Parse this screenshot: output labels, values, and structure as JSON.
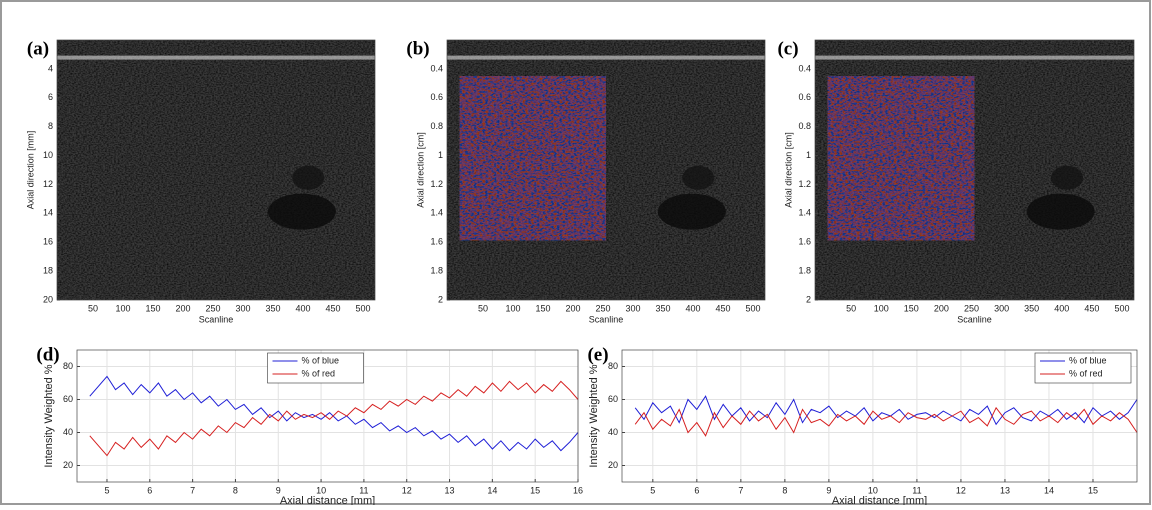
{
  "chart_data": [
    {
      "type": "image",
      "panel_label": "(a)",
      "ylabel": "Axial direction [mm]",
      "xlabel": "Scanline",
      "xlim": [
        -10,
        520
      ],
      "xticks": [
        50,
        100,
        150,
        200,
        250,
        300,
        350,
        400,
        450,
        500
      ],
      "ylim": [
        20,
        2
      ],
      "yticks": [
        4,
        6,
        8,
        10,
        12,
        14,
        16,
        18,
        20
      ],
      "overlay": false
    },
    {
      "type": "image",
      "panel_label": "(b)",
      "ylabel": "Axial direction [cm]",
      "xlabel": "Scanline",
      "xlim": [
        -10,
        520
      ],
      "xticks": [
        50,
        100,
        150,
        200,
        250,
        300,
        350,
        400,
        450,
        500
      ],
      "ylim": [
        2,
        0.2
      ],
      "yticks": [
        0.4,
        0.6,
        0.8,
        1,
        1.2,
        1.4,
        1.6,
        1.8,
        2
      ],
      "overlay": true
    },
    {
      "type": "image",
      "panel_label": "(c)",
      "ylabel": "Axial direction [cm]",
      "xlabel": "Scanline",
      "xlim": [
        -10,
        520
      ],
      "xticks": [
        50,
        100,
        150,
        200,
        250,
        300,
        350,
        400,
        450,
        500
      ],
      "ylim": [
        2,
        0.2
      ],
      "yticks": [
        0.4,
        0.6,
        0.8,
        1,
        1.2,
        1.4,
        1.6,
        1.8,
        2
      ],
      "overlay": true
    },
    {
      "type": "line",
      "panel_label": "(d)",
      "ylabel": "Intensity Weighted %",
      "xlabel": "Axial distance [mm]",
      "xlim": [
        4.3,
        16
      ],
      "xticks": [
        5,
        6,
        7,
        8,
        9,
        10,
        11,
        12,
        13,
        14,
        15,
        16
      ],
      "ylim": [
        10,
        90
      ],
      "yticks": [
        20,
        40,
        60,
        80
      ],
      "grid": true,
      "legend": "upper center",
      "x": [
        4.6,
        4.8,
        5.0,
        5.2,
        5.4,
        5.6,
        5.8,
        6.0,
        6.2,
        6.4,
        6.6,
        6.8,
        7.0,
        7.2,
        7.4,
        7.6,
        7.8,
        8.0,
        8.2,
        8.4,
        8.6,
        8.8,
        9.0,
        9.2,
        9.4,
        9.6,
        9.8,
        10.0,
        10.2,
        10.4,
        10.6,
        10.8,
        11.0,
        11.2,
        11.4,
        11.6,
        11.8,
        12.0,
        12.2,
        12.4,
        12.6,
        12.8,
        13.0,
        13.2,
        13.4,
        13.6,
        13.8,
        14.0,
        14.2,
        14.4,
        14.6,
        14.8,
        15.0,
        15.2,
        15.4,
        15.6,
        15.8,
        16.0
      ],
      "series": [
        {
          "name": "% of blue",
          "color": "#1f1fd6",
          "values": [
            62,
            68,
            74,
            66,
            70,
            63,
            69,
            64,
            70,
            62,
            66,
            60,
            64,
            58,
            62,
            56,
            60,
            54,
            57,
            51,
            55,
            49,
            53,
            47,
            52,
            49,
            51,
            48,
            52,
            47,
            50,
            45,
            48,
            43,
            46,
            41,
            44,
            40,
            43,
            38,
            41,
            36,
            39,
            34,
            38,
            32,
            36,
            30,
            35,
            29,
            34,
            30,
            36,
            31,
            35,
            29,
            34,
            40
          ]
        },
        {
          "name": "% of red",
          "color": "#d62020",
          "values": [
            38,
            32,
            26,
            34,
            30,
            37,
            31,
            36,
            30,
            38,
            34,
            40,
            36,
            42,
            38,
            44,
            40,
            46,
            43,
            49,
            45,
            51,
            47,
            53,
            48,
            51,
            49,
            52,
            48,
            53,
            50,
            55,
            52,
            57,
            54,
            59,
            56,
            60,
            57,
            62,
            59,
            64,
            61,
            66,
            62,
            68,
            64,
            70,
            65,
            71,
            66,
            70,
            64,
            69,
            65,
            71,
            66,
            60
          ]
        }
      ]
    },
    {
      "type": "line",
      "panel_label": "(e)",
      "ylabel": "Intensity Weighted %",
      "xlabel": "Axial distance [mm]",
      "xlim": [
        4.3,
        16
      ],
      "xticks": [
        5,
        6,
        7,
        8,
        9,
        10,
        11,
        12,
        13,
        14,
        15
      ],
      "ylim": [
        10,
        90
      ],
      "yticks": [
        20,
        40,
        60,
        80
      ],
      "grid": true,
      "legend": "upper right",
      "x": [
        4.6,
        4.8,
        5.0,
        5.2,
        5.4,
        5.6,
        5.8,
        6.0,
        6.2,
        6.4,
        6.6,
        6.8,
        7.0,
        7.2,
        7.4,
        7.6,
        7.8,
        8.0,
        8.2,
        8.4,
        8.6,
        8.8,
        9.0,
        9.2,
        9.4,
        9.6,
        9.8,
        10.0,
        10.2,
        10.4,
        10.6,
        10.8,
        11.0,
        11.2,
        11.4,
        11.6,
        11.8,
        12.0,
        12.2,
        12.4,
        12.6,
        12.8,
        13.0,
        13.2,
        13.4,
        13.6,
        13.8,
        14.0,
        14.2,
        14.4,
        14.6,
        14.8,
        15.0,
        15.2,
        15.4,
        15.6,
        15.8,
        16.0
      ],
      "series": [
        {
          "name": "% of blue",
          "color": "#1f1fd6",
          "values": [
            55,
            48,
            58,
            52,
            56,
            46,
            60,
            54,
            62,
            48,
            57,
            50,
            55,
            47,
            53,
            49,
            58,
            51,
            60,
            46,
            54,
            52,
            56,
            49,
            53,
            50,
            55,
            47,
            52,
            50,
            54,
            48,
            51,
            52,
            49,
            53,
            50,
            47,
            54,
            51,
            56,
            45,
            52,
            55,
            49,
            47,
            53,
            50,
            54,
            48,
            52,
            46,
            55,
            50,
            53,
            48,
            52,
            60
          ]
        },
        {
          "name": "% of red",
          "color": "#d62020",
          "values": [
            45,
            52,
            42,
            48,
            44,
            54,
            40,
            46,
            38,
            52,
            43,
            50,
            45,
            53,
            47,
            51,
            42,
            49,
            40,
            54,
            46,
            48,
            44,
            51,
            47,
            50,
            45,
            53,
            48,
            50,
            46,
            52,
            49,
            48,
            51,
            47,
            50,
            53,
            46,
            49,
            44,
            55,
            48,
            45,
            51,
            53,
            47,
            50,
            46,
            52,
            48,
            54,
            45,
            50,
            47,
            52,
            48,
            40
          ]
        }
      ]
    }
  ]
}
